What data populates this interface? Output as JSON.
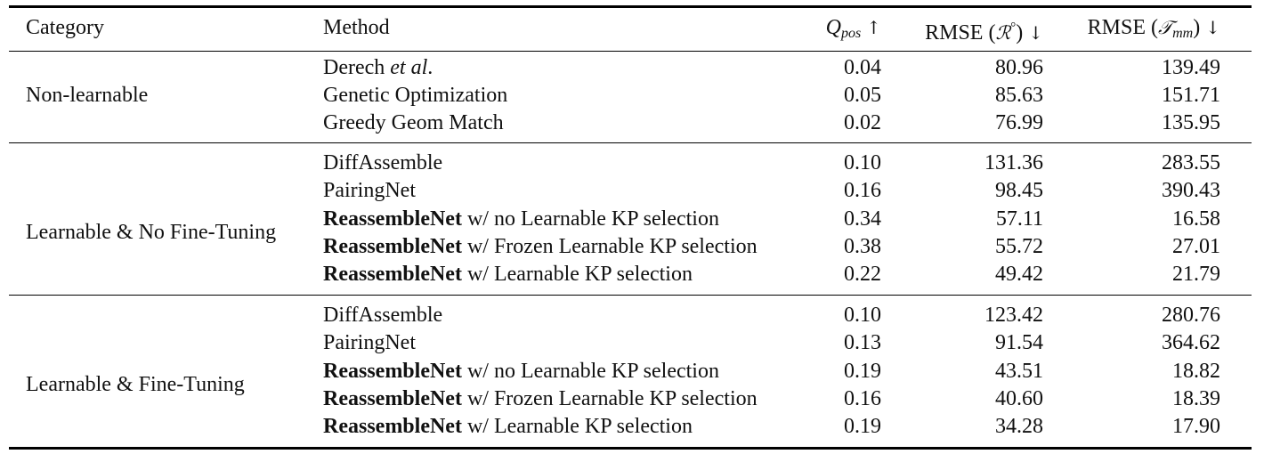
{
  "headers": {
    "category": "Category",
    "method": "Method",
    "q_sym": "Q",
    "q_sub": "pos",
    "q_arrow": "↑",
    "rmse_r_prefix": "RMSE (",
    "rmse_r_sym": "ℛ",
    "rmse_r_sup": "°",
    "rmse_r_suffix": ")",
    "rmse_r_arrow": "↓",
    "rmse_t_prefix": "RMSE (",
    "rmse_t_sym": "𝒯",
    "rmse_t_sub": "mm",
    "rmse_t_suffix": ")",
    "rmse_t_arrow": "↓"
  },
  "groups": [
    {
      "category": "Non-learnable",
      "rows": [
        {
          "bold": "",
          "method": "Derech ",
          "italic": "et al",
          "tail": ".",
          "q": "0.04",
          "rmse_r": "80.96",
          "rmse_t": "139.49"
        },
        {
          "bold": "",
          "method": "Genetic Optimization",
          "italic": "",
          "tail": "",
          "q": "0.05",
          "rmse_r": "85.63",
          "rmse_t": "151.71"
        },
        {
          "bold": "",
          "method": "Greedy Geom Match",
          "italic": "",
          "tail": "",
          "q": "0.02",
          "rmse_r": "76.99",
          "rmse_t": "135.95"
        }
      ]
    },
    {
      "category": "Learnable & No Fine-Tuning",
      "rows": [
        {
          "bold": "",
          "method": "DiffAssemble",
          "italic": "",
          "tail": "",
          "q": "0.10",
          "rmse_r": "131.36",
          "rmse_t": "283.55"
        },
        {
          "bold": "",
          "method": "PairingNet",
          "italic": "",
          "tail": "",
          "q": "0.16",
          "rmse_r": "98.45",
          "rmse_t": "390.43"
        },
        {
          "bold": "ReassembleNet",
          "method": " w/ no Learnable KP selection",
          "italic": "",
          "tail": "",
          "q": "0.34",
          "rmse_r": "57.11",
          "rmse_t": "16.58"
        },
        {
          "bold": "ReassembleNet",
          "method": " w/ Frozen Learnable KP selection",
          "italic": "",
          "tail": "",
          "q": "0.38",
          "rmse_r": "55.72",
          "rmse_t": "27.01"
        },
        {
          "bold": "ReassembleNet",
          "method": " w/ Learnable KP selection",
          "italic": "",
          "tail": "",
          "q": "0.22",
          "rmse_r": "49.42",
          "rmse_t": "21.79"
        }
      ]
    },
    {
      "category": "Learnable & Fine-Tuning",
      "rows": [
        {
          "bold": "",
          "method": "DiffAssemble",
          "italic": "",
          "tail": "",
          "q": "0.10",
          "rmse_r": "123.42",
          "rmse_t": "280.76"
        },
        {
          "bold": "",
          "method": "PairingNet",
          "italic": "",
          "tail": "",
          "q": "0.13",
          "rmse_r": "91.54",
          "rmse_t": "364.62"
        },
        {
          "bold": "ReassembleNet",
          "method": " w/ no Learnable KP selection",
          "italic": "",
          "tail": "",
          "q": "0.19",
          "rmse_r": "43.51",
          "rmse_t": "18.82"
        },
        {
          "bold": "ReassembleNet",
          "method": " w/ Frozen Learnable KP selection",
          "italic": "",
          "tail": "",
          "q": "0.16",
          "rmse_r": "40.60",
          "rmse_t": "18.39"
        },
        {
          "bold": "ReassembleNet",
          "method": " w/ Learnable KP selection",
          "italic": "",
          "tail": "",
          "q": "0.19",
          "rmse_r": "34.28",
          "rmse_t": "17.90"
        }
      ]
    }
  ]
}
